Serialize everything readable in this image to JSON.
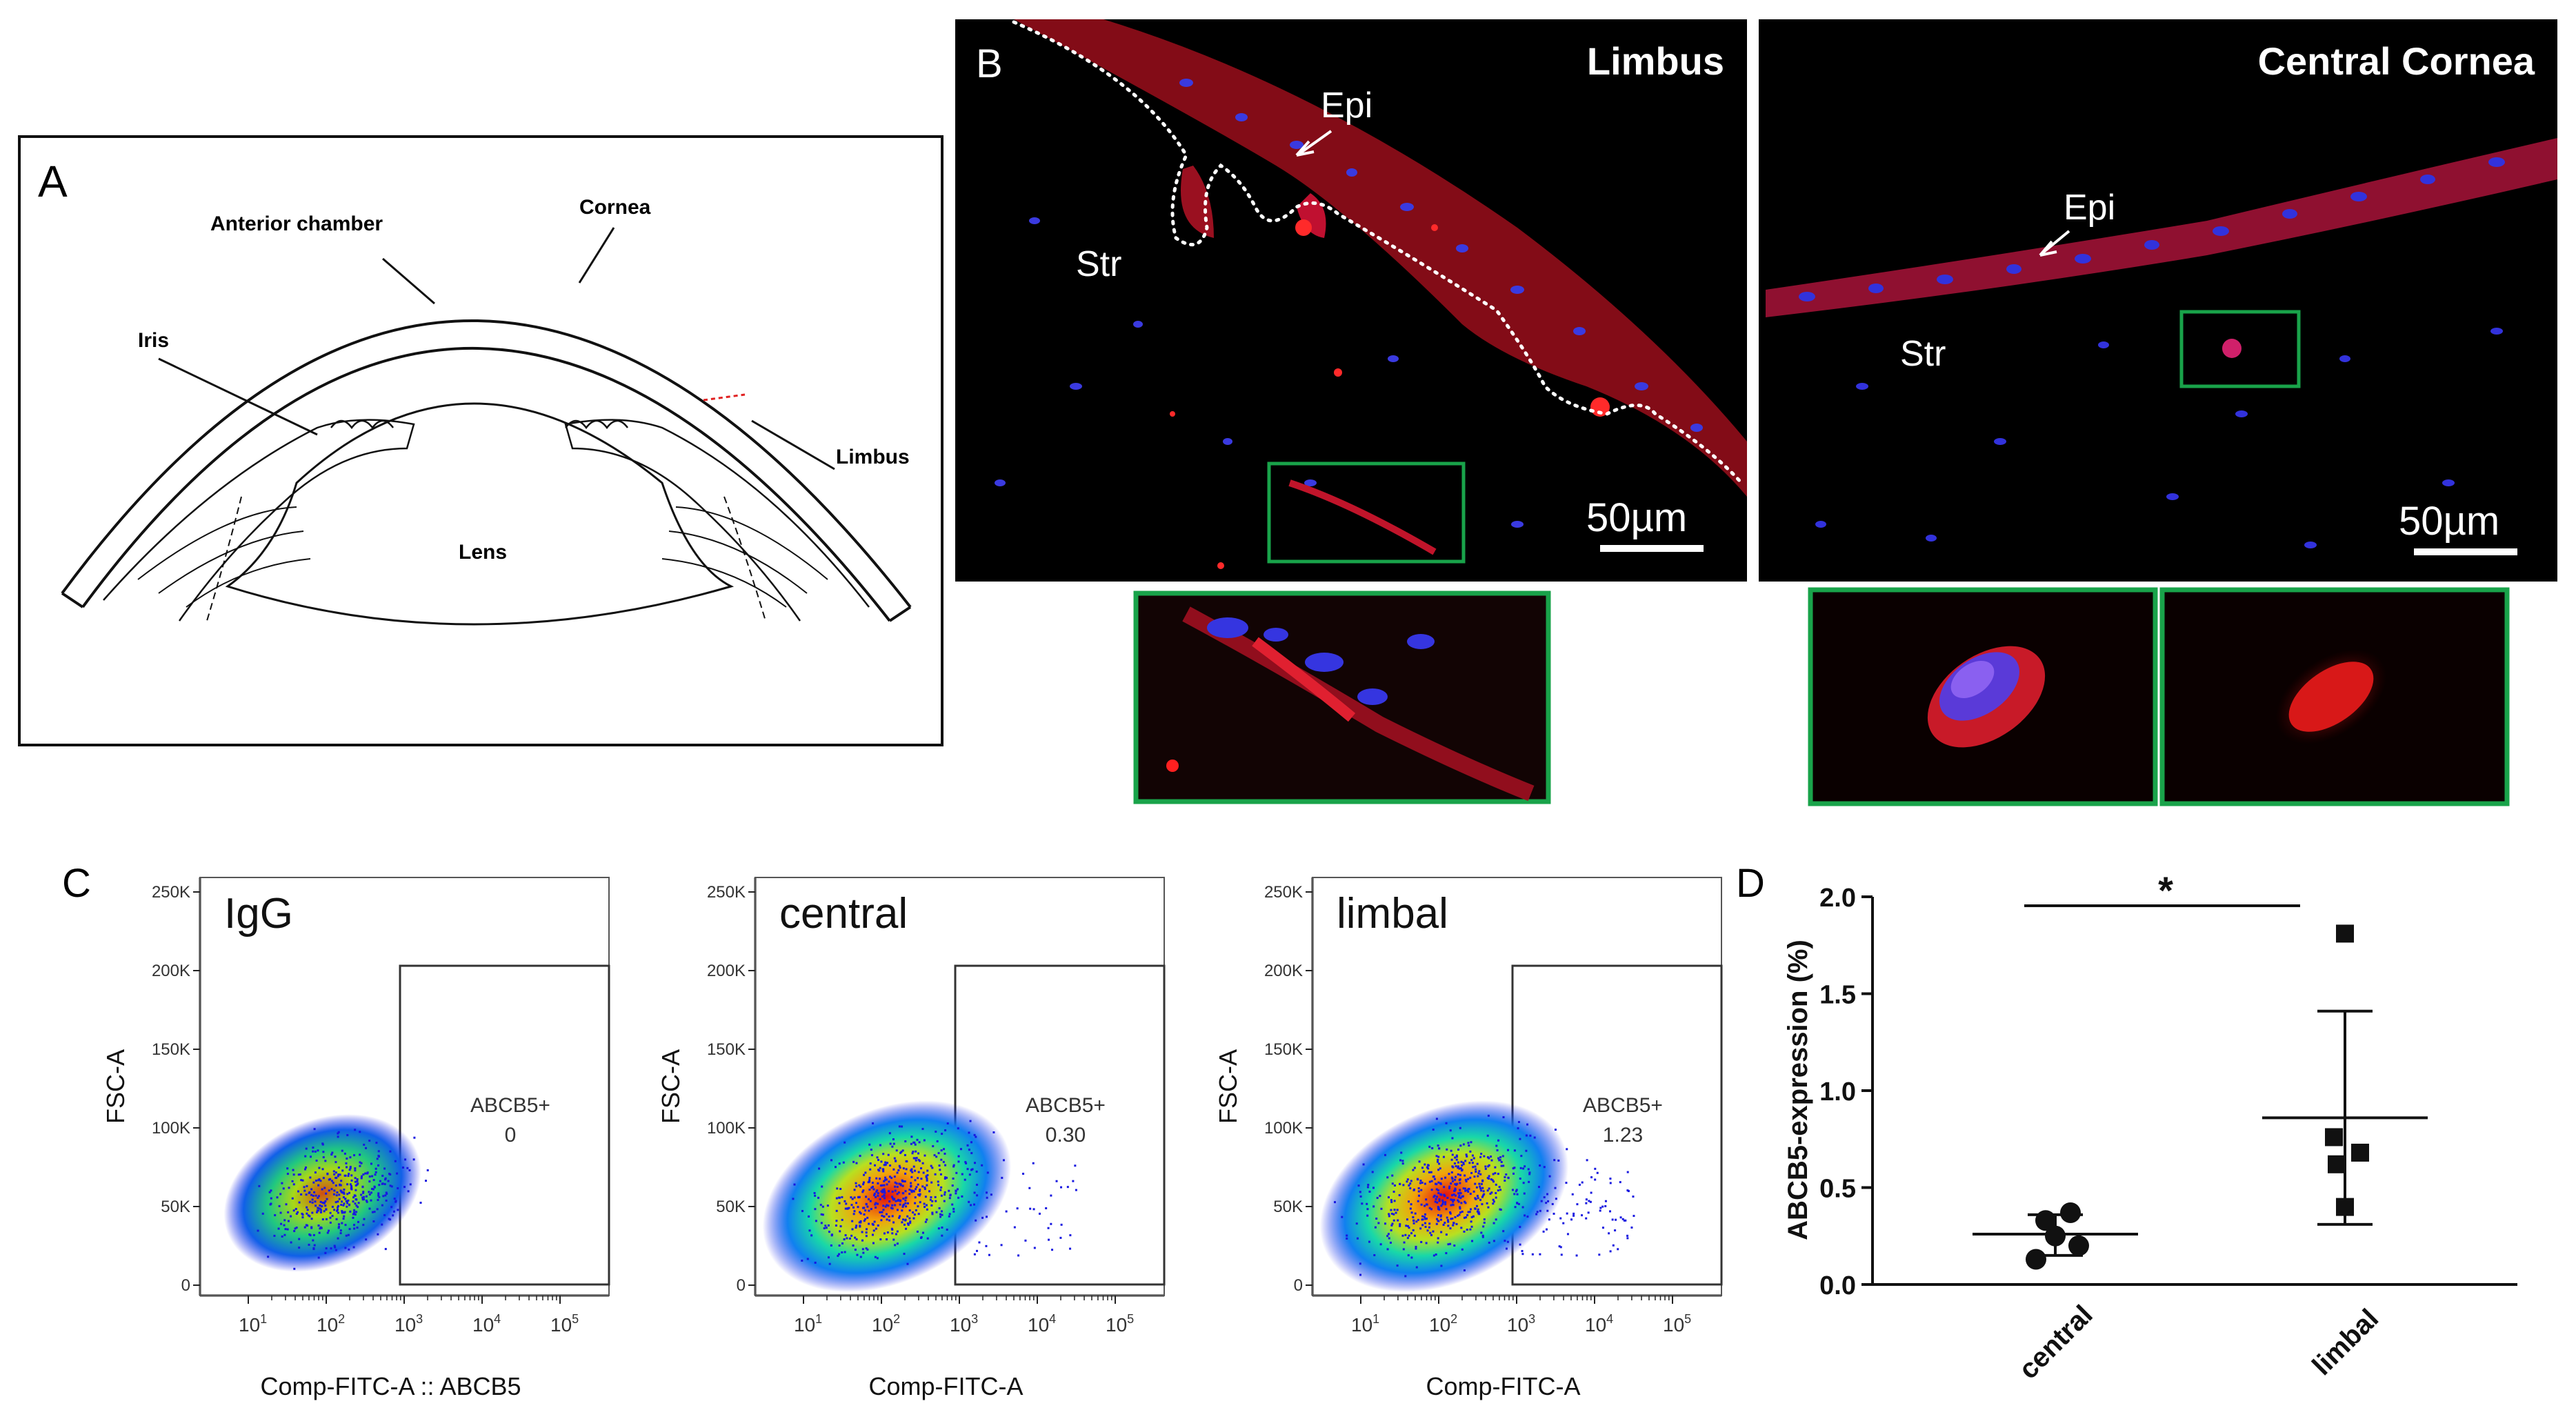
{
  "panel_letters": {
    "a": "A",
    "b": "B",
    "c": "C",
    "d": "D"
  },
  "panel_a": {
    "labels": {
      "anterior_chamber": "Anterior chamber",
      "cornea": "Cornea",
      "iris": "Iris",
      "limbus": "Limbus",
      "lens": "Lens"
    }
  },
  "panel_b": {
    "limbus": {
      "title": "Limbus",
      "epi": "Epi",
      "str": "Str",
      "scale_bar": "50µm"
    },
    "central": {
      "title": "Central Cornea",
      "epi": "Epi",
      "str": "Str",
      "scale_bar": "50µm"
    }
  },
  "colors": {
    "inset_border": "#19a34a",
    "fluor_red": "#e01515",
    "fluor_blue": "#2a2ad8",
    "gate_line": "#333333"
  },
  "panel_c": {
    "y_ticks": [
      "0",
      "50K",
      "100K",
      "150K",
      "200K",
      "250K"
    ],
    "plots": [
      {
        "label": "IgG",
        "gate_label": "ABCB5+",
        "gate_value": "0",
        "ylabel": "FSC-A",
        "xlabel": "Comp-FITC-A :: ABCB5"
      },
      {
        "label": "central",
        "gate_label": "ABCB5+",
        "gate_value": "0.30",
        "ylabel": "FSC-A",
        "xlabel": "Comp-FITC-A"
      },
      {
        "label": "limbal",
        "gate_label": "ABCB5+",
        "gate_value": "1.23",
        "ylabel": "FSC-A",
        "xlabel": "Comp-FITC-A"
      }
    ]
  },
  "chart_data": {
    "type": "scatter",
    "title": "",
    "xlabel": "",
    "ylabel": "ABCB5-expression (%)",
    "categories": [
      "central",
      "limbal"
    ],
    "ylim": [
      0.0,
      2.0
    ],
    "y_ticks": [
      "0.0",
      "0.5",
      "1.0",
      "1.5",
      "2.0"
    ],
    "series": [
      {
        "name": "central",
        "marker": "circle",
        "values": [
          0.13,
          0.2,
          0.25,
          0.33,
          0.37
        ],
        "mean": 0.26,
        "sd_low": 0.15,
        "sd_high": 0.36
      },
      {
        "name": "limbal",
        "marker": "square",
        "values": [
          0.4,
          0.62,
          0.68,
          0.76,
          1.81
        ],
        "mean": 0.86,
        "sd_low": 0.31,
        "sd_high": 1.41
      }
    ],
    "significance": "*"
  }
}
